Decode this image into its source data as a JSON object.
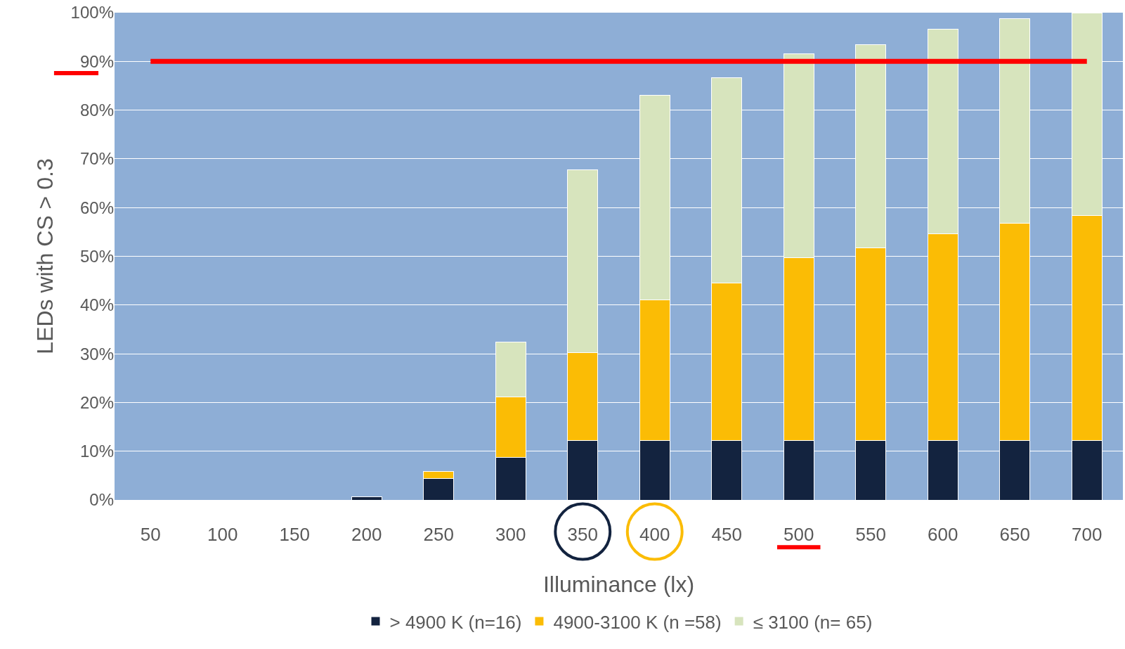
{
  "chart_data": {
    "type": "bar",
    "stacked": true,
    "xlabel": "Illuminance (lx)",
    "ylabel": "LEDs with CS > 0.3",
    "categories": [
      "50",
      "100",
      "150",
      "200",
      "250",
      "300",
      "350",
      "400",
      "450",
      "500",
      "550",
      "600",
      "650",
      "700"
    ],
    "series": [
      {
        "name": "> 4900 K (n=16)",
        "color": "#13233f",
        "values": [
          0,
          0,
          0,
          0.7,
          4.4,
          8.8,
          12.2,
          12.2,
          12.2,
          12.2,
          12.2,
          12.2,
          12.2,
          12.2
        ]
      },
      {
        "name": "4900-3100 K (n =58)",
        "color": "#fbbc05",
        "values": [
          0,
          0,
          0,
          0,
          1.4,
          12.3,
          18.0,
          28.8,
          32.3,
          37.5,
          39.6,
          42.4,
          44.6,
          46.1
        ]
      },
      {
        "name": "≤ 3100 (n= 65)",
        "color": "#d7e4bd",
        "values": [
          0,
          0,
          0,
          0,
          0,
          11.3,
          37.5,
          42.0,
          42.2,
          41.9,
          41.7,
          42.0,
          42.0,
          41.7
        ]
      }
    ],
    "ylim": [
      0,
      100
    ],
    "yticks": [
      {
        "value": 0,
        "label": "0%"
      },
      {
        "value": 10,
        "label": "10%"
      },
      {
        "value": 20,
        "label": "20%"
      },
      {
        "value": 30,
        "label": "30%"
      },
      {
        "value": 40,
        "label": "40%"
      },
      {
        "value": 50,
        "label": "50%"
      },
      {
        "value": 60,
        "label": "60%"
      },
      {
        "value": 70,
        "label": "70%"
      },
      {
        "value": 80,
        "label": "80%"
      },
      {
        "value": 90,
        "label": "90%"
      },
      {
        "value": 100,
        "label": "100%"
      }
    ],
    "ref_lines": [
      {
        "axis": "y",
        "value": 90,
        "color": "#ff0000"
      }
    ],
    "grid": "y",
    "legend": "bottom"
  }
}
